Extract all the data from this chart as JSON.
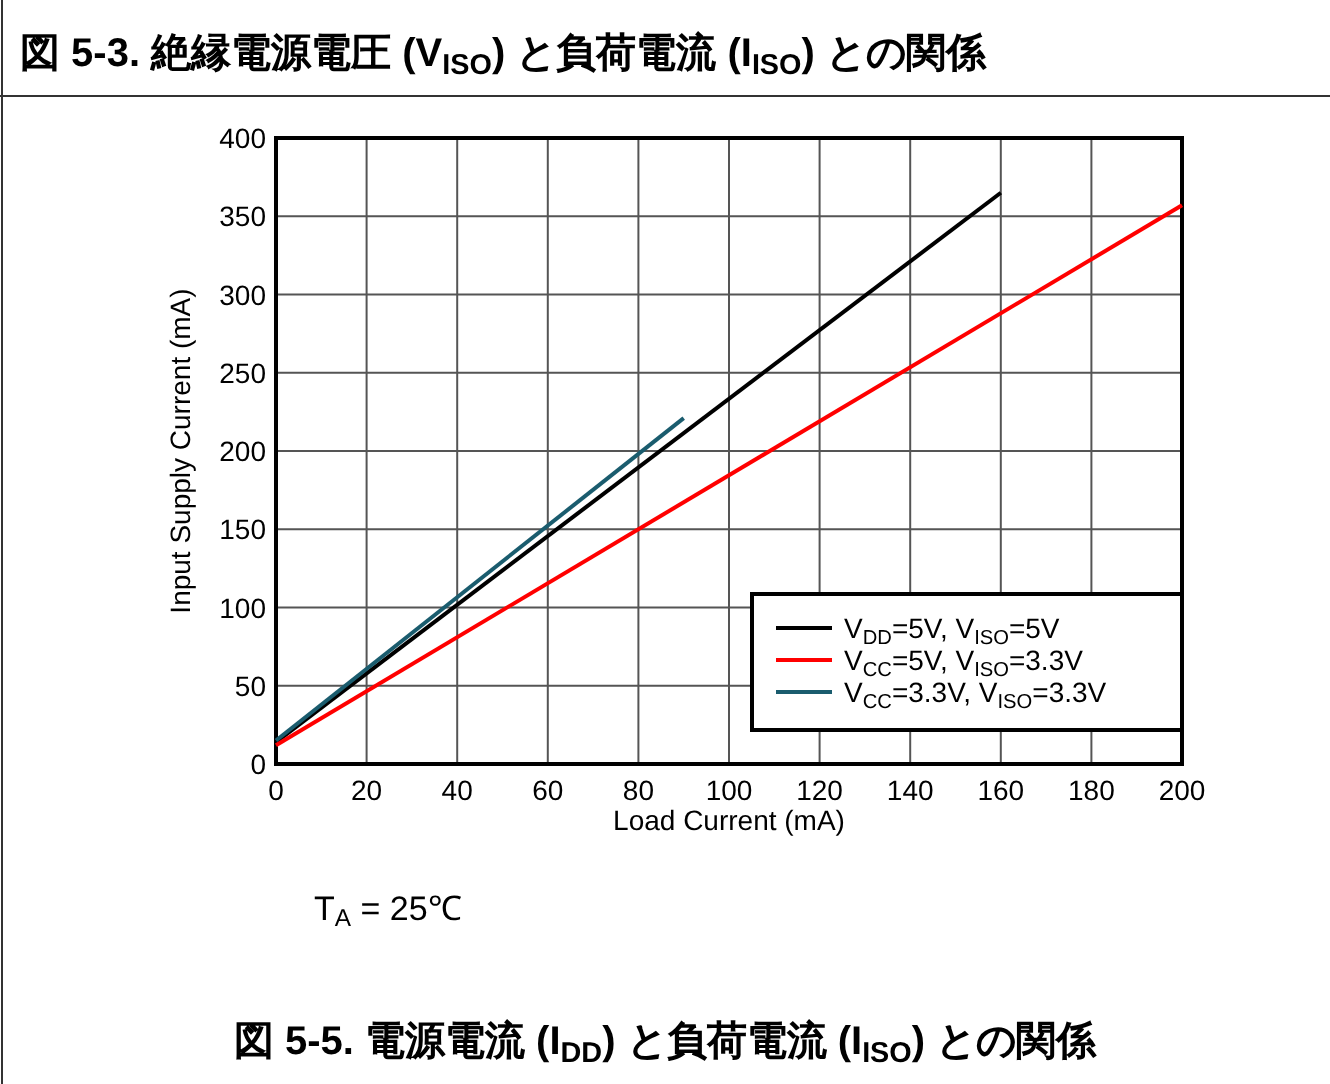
{
  "chart_data": {
    "type": "line",
    "title": "図 5-5. 電源電流 (I$_{DD}$) と負荷電流 (I$_{ISO}$) との関係",
    "xlabel": "Load Current (mA)",
    "ylabel": "Input Supply Current (mA)",
    "annotations": [
      "図 5-3. 絶縁電源電圧 (V$_{ISO}$) と負荷電流 (I$_{ISO}$) との関係",
      "T$_{A}$ = 25℃"
    ],
    "series": [
      {
        "name": "V$_{DD}$=5V, V$_{ISO}$=5V",
        "color": "#000000",
        "x": [
          0,
          160
        ],
        "values": [
          14,
          365
        ]
      },
      {
        "name": "V$_{CC}$=5V, V$_{ISO}$=3.3V",
        "color": "#ff0000",
        "x": [
          0,
          200
        ],
        "values": [
          12,
          357
        ]
      },
      {
        "name": "V$_{CC}$=3.3V, V$_{ISO}$=3.3V",
        "color": "#1a5c6e",
        "x": [
          0,
          90
        ],
        "values": [
          15,
          221
        ]
      }
    ],
    "xlim": [
      0,
      200
    ],
    "xticks": [
      0,
      20,
      40,
      60,
      80,
      100,
      120,
      140,
      160,
      180,
      200
    ],
    "ylim": [
      0,
      400
    ],
    "yticks": [
      0,
      50,
      100,
      150,
      200,
      250,
      300,
      350,
      400
    ],
    "grid": true,
    "legend": "bottom right"
  }
}
